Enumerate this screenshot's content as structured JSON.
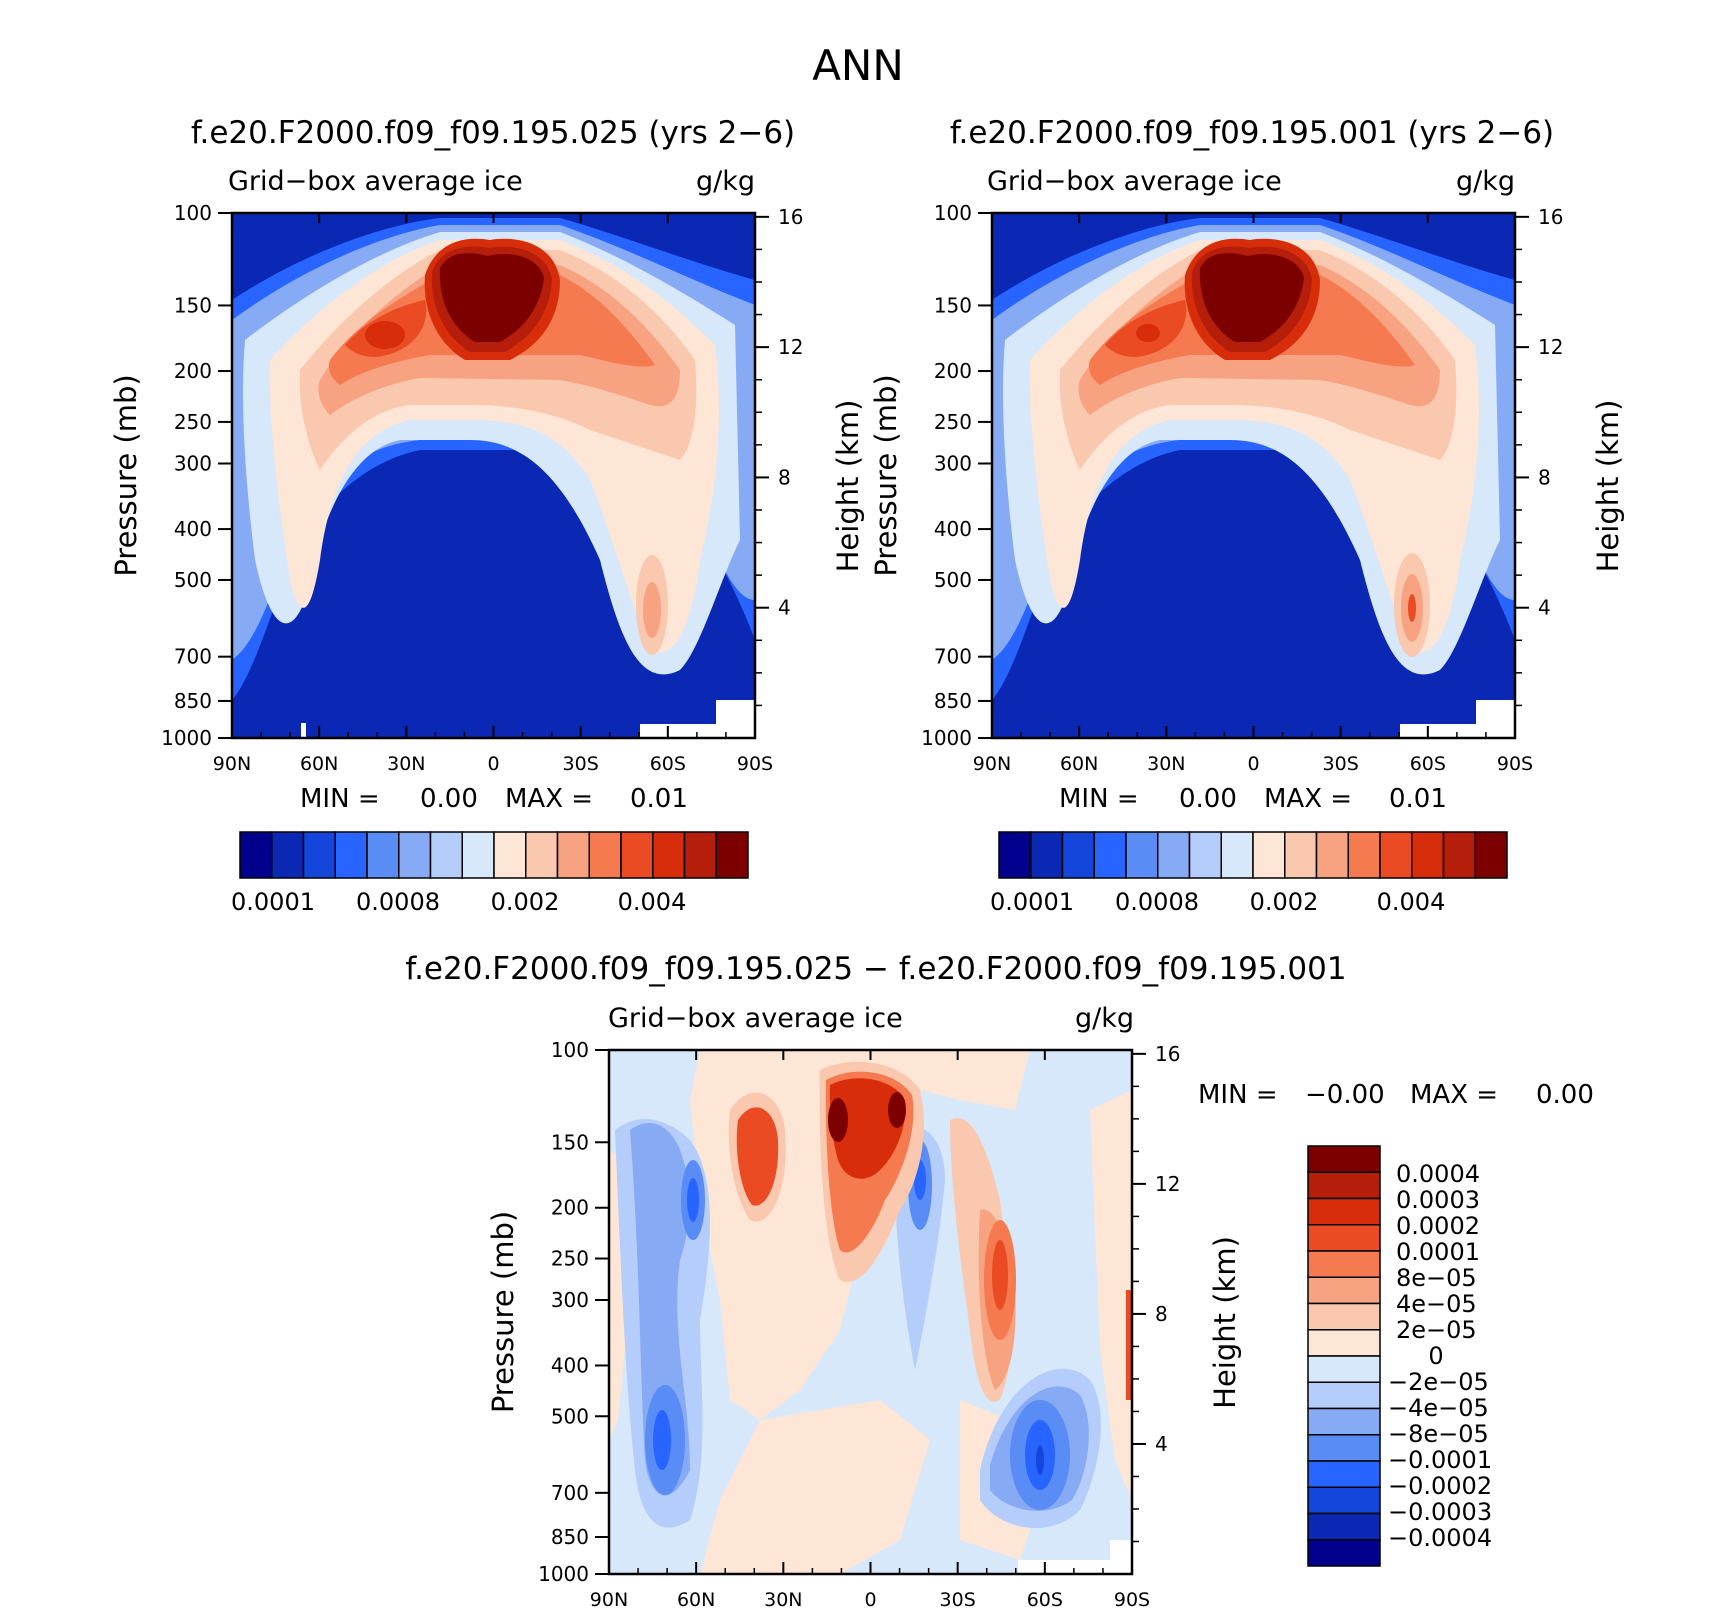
{
  "page_title": "ANN",
  "chart_data": [
    {
      "type": "heatmap",
      "title": "f.e20.F2000.f09_f09.195.025 (yrs 2−6)",
      "subtitle_left": "Grid−box average ice",
      "subtitle_right": "g/kg",
      "ylabel": "Pressure (mb)",
      "ylabel_right": "Height (km)",
      "x_ticks": [
        "90N",
        "60N",
        "30N",
        "0",
        "30S",
        "60S",
        "90S"
      ],
      "x_values": [
        90,
        60,
        30,
        0,
        -30,
        -60,
        -90
      ],
      "xlim": [
        90,
        -90
      ],
      "y_ticks": [
        100,
        150,
        200,
        250,
        300,
        400,
        500,
        700,
        850,
        1000
      ],
      "ylim": [
        100,
        1000
      ],
      "height_ticks": [
        16,
        12,
        8,
        4
      ],
      "min_label": "MIN =",
      "min_value": "0.00",
      "max_label": "MAX =",
      "max_value": "0.01",
      "colorbar_labels": [
        "0.0001",
        "0.0008",
        "0.002",
        "0.004"
      ],
      "colorbar_colors": [
        "#00008c",
        "#0a28b4",
        "#1446dc",
        "#2864ff",
        "#5a8cf5",
        "#87aaf5",
        "#b4cdfa",
        "#d7e8fa",
        "#fde6d6",
        "#fac8af",
        "#f7a382",
        "#f57a50",
        "#eb4b23",
        "#d72d0a",
        "#b41e0a",
        "#7d0000"
      ]
    },
    {
      "type": "heatmap",
      "title": "f.e20.F2000.f09_f09.195.001 (yrs 2−6)",
      "subtitle_left": "Grid−box average ice",
      "subtitle_right": "g/kg",
      "ylabel": "Pressure (mb)",
      "ylabel_right": "Height (km)",
      "x_ticks": [
        "90N",
        "60N",
        "30N",
        "0",
        "30S",
        "60S",
        "90S"
      ],
      "x_values": [
        90,
        60,
        30,
        0,
        -30,
        -60,
        -90
      ],
      "xlim": [
        90,
        -90
      ],
      "y_ticks": [
        100,
        150,
        200,
        250,
        300,
        400,
        500,
        700,
        850,
        1000
      ],
      "ylim": [
        100,
        1000
      ],
      "height_ticks": [
        16,
        12,
        8,
        4
      ],
      "min_label": "MIN =",
      "min_value": "0.00",
      "max_label": "MAX =",
      "max_value": "0.01",
      "colorbar_labels": [
        "0.0001",
        "0.0008",
        "0.002",
        "0.004"
      ],
      "colorbar_colors": [
        "#00008c",
        "#0a28b4",
        "#1446dc",
        "#2864ff",
        "#5a8cf5",
        "#87aaf5",
        "#b4cdfa",
        "#d7e8fa",
        "#fde6d6",
        "#fac8af",
        "#f7a382",
        "#f57a50",
        "#eb4b23",
        "#d72d0a",
        "#b41e0a",
        "#7d0000"
      ]
    },
    {
      "type": "heatmap",
      "title": "f.e20.F2000.f09_f09.195.025 − f.e20.F2000.f09_f09.195.001",
      "subtitle_left": "Grid−box average ice",
      "subtitle_right": "g/kg",
      "ylabel": "Pressure (mb)",
      "ylabel_right": "Height (km)",
      "x_ticks": [
        "90N",
        "60N",
        "30N",
        "0",
        "30S",
        "60S",
        "90S"
      ],
      "x_values": [
        90,
        60,
        30,
        0,
        -30,
        -60,
        -90
      ],
      "xlim": [
        90,
        -90
      ],
      "y_ticks": [
        100,
        150,
        200,
        250,
        300,
        400,
        500,
        700,
        850,
        1000
      ],
      "ylim": [
        100,
        1000
      ],
      "height_ticks": [
        16,
        12,
        8,
        4
      ],
      "min_label": "MIN =",
      "min_value": "−0.00",
      "max_label": "MAX =",
      "max_value": "0.00",
      "colorbar_labels": [
        "0.0004",
        "0.0003",
        "0.0002",
        "0.0001",
        "8e−05",
        "4e−05",
        "2e−05",
        "0",
        "−2e−05",
        "−4e−05",
        "−8e−05",
        "−0.0001",
        "−0.0002",
        "−0.0003",
        "−0.0004"
      ],
      "colorbar_colors": [
        "#7d0000",
        "#b41e0a",
        "#d72d0a",
        "#eb4b23",
        "#f57a50",
        "#f7a382",
        "#fac8af",
        "#fde6d6",
        "#d7e8fa",
        "#b4cdfa",
        "#87aaf5",
        "#5a8cf5",
        "#2864ff",
        "#1446dc",
        "#0a28b4",
        "#00008c"
      ]
    }
  ]
}
